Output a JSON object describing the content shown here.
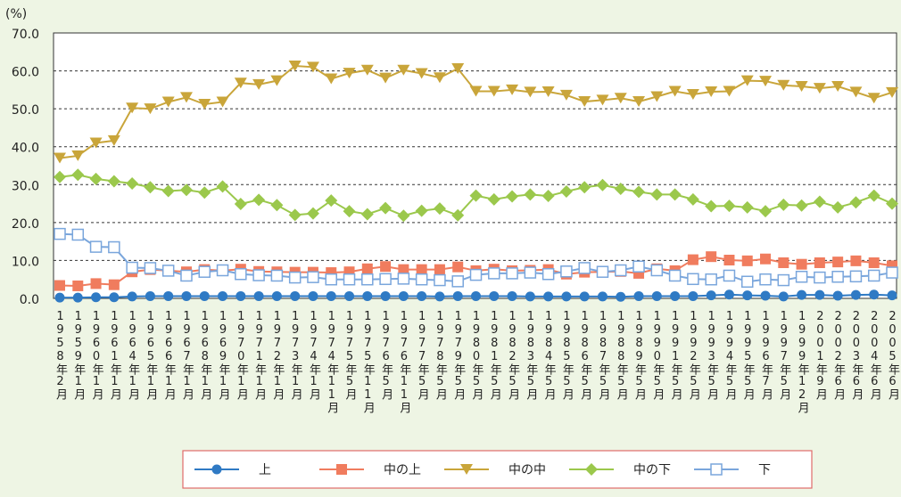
{
  "chart_data": {
    "type": "line",
    "y_label": "(%)",
    "categories": [
      "1958年2月",
      "1959年1月",
      "1960年1月",
      "1961年1月",
      "1964年1月",
      "1965年1月",
      "1966年1月",
      "1967年1月",
      "1968年1月",
      "1969年1月",
      "1970年1月",
      "1971年1月",
      "1972年1月",
      "1973年1月",
      "1974年1月",
      "1974年11月",
      "1975年5月",
      "1975年11月",
      "1976年5月",
      "1976年11月",
      "1977年5月",
      "1978年5月",
      "1979年5月",
      "1980年5月",
      "1981年5月",
      "1982年5月",
      "1983年5月",
      "1984年5月",
      "1985年5月",
      "1986年5月",
      "1987年5月",
      "1988年5月",
      "1989年5月",
      "1990年5月",
      "1991年5月",
      "1992年5月",
      "1993年5月",
      "1994年5月",
      "1995年5月",
      "1996年7月",
      "1997年5月",
      "1999年12月",
      "2001年9月",
      "2002年6月",
      "2003年6月",
      "2004年6月",
      "2005年6月"
    ],
    "series": [
      {
        "name": "上",
        "color": "#2f7ac4",
        "marker": "circle",
        "values": [
          0.2,
          0.2,
          0.3,
          0.3,
          0.5,
          0.6,
          0.6,
          0.6,
          0.6,
          0.6,
          0.6,
          0.6,
          0.6,
          0.6,
          0.6,
          0.6,
          0.6,
          0.6,
          0.6,
          0.6,
          0.6,
          0.5,
          0.6,
          0.6,
          0.6,
          0.6,
          0.5,
          0.5,
          0.5,
          0.5,
          0.5,
          0.4,
          0.6,
          0.6,
          0.6,
          0.6,
          0.8,
          1.0,
          0.8,
          0.7,
          0.5,
          0.9,
          0.9,
          0.7,
          0.9,
          1.0,
          0.8
        ]
      },
      {
        "name": "中の上",
        "color": "#f07c5e",
        "marker": "square",
        "values": [
          3.4,
          3.3,
          3.9,
          3.6,
          7.0,
          7.6,
          7.3,
          7.0,
          7.6,
          7.3,
          7.7,
          7.1,
          7.0,
          6.9,
          6.9,
          6.8,
          7.0,
          7.8,
          8.4,
          7.6,
          7.6,
          7.6,
          8.3,
          7.3,
          7.7,
          7.3,
          7.4,
          7.6,
          6.4,
          6.9,
          7.0,
          7.1,
          6.6,
          7.8,
          7.3,
          10.2,
          11.0,
          10.1,
          9.9,
          10.4,
          9.4,
          9.0,
          9.4,
          9.6,
          9.9,
          9.4,
          8.6
        ]
      },
      {
        "name": "中の中",
        "color": "#c9a53a",
        "marker": "triangle",
        "values": [
          37.0,
          37.6,
          41.0,
          41.6,
          50.2,
          50.0,
          51.8,
          53.0,
          51.2,
          51.8,
          56.8,
          56.4,
          57.4,
          61.3,
          61.0,
          57.9,
          59.4,
          60.2,
          58.1,
          60.2,
          59.3,
          58.2,
          60.6,
          54.6,
          54.6,
          55.0,
          54.4,
          54.5,
          53.6,
          51.9,
          52.3,
          52.8,
          51.9,
          53.2,
          54.6,
          53.8,
          54.5,
          54.6,
          57.4,
          57.3,
          56.2,
          55.9,
          55.4,
          55.9,
          54.4,
          52.8,
          54.3
        ]
      },
      {
        "name": "中の下",
        "color": "#9bc84c",
        "marker": "diamond",
        "values": [
          32.0,
          32.6,
          31.5,
          30.9,
          30.3,
          29.3,
          28.3,
          28.6,
          27.9,
          29.5,
          24.9,
          26.0,
          24.6,
          22.0,
          22.4,
          25.8,
          23.0,
          22.2,
          23.8,
          21.8,
          23.1,
          23.7,
          21.9,
          27.1,
          26.1,
          26.9,
          27.4,
          27.0,
          28.2,
          29.3,
          29.9,
          28.9,
          28.1,
          27.4,
          27.4,
          26.1,
          24.3,
          24.4,
          24.0,
          23.0,
          24.7,
          24.5,
          25.5,
          24.0,
          25.3,
          27.1,
          25.0
        ]
      },
      {
        "name": "下",
        "color": "#7aa6dc",
        "marker": "open-square",
        "values": [
          17.0,
          16.8,
          13.6,
          13.5,
          8.1,
          8.0,
          7.3,
          6.0,
          7.0,
          7.4,
          6.4,
          6.1,
          6.0,
          5.5,
          5.6,
          5.0,
          5.0,
          5.0,
          5.1,
          5.2,
          5.0,
          4.8,
          4.5,
          6.2,
          6.6,
          6.6,
          6.8,
          6.4,
          7.1,
          8.0,
          7.0,
          7.4,
          8.4,
          7.4,
          6.0,
          5.1,
          5.0,
          6.0,
          4.4,
          5.0,
          4.8,
          5.7,
          5.5,
          5.7,
          5.8,
          6.0,
          6.8
        ]
      }
    ],
    "ylim": [
      0,
      70
    ],
    "yticks": [
      {
        "value": 0,
        "label": "0.0"
      },
      {
        "value": 10,
        "label": "10.0"
      },
      {
        "value": 20,
        "label": "20.0"
      },
      {
        "value": 30,
        "label": "30.0"
      },
      {
        "value": 40,
        "label": "40.0"
      },
      {
        "value": 50,
        "label": "50.0"
      },
      {
        "value": 60,
        "label": "60.0"
      },
      {
        "value": 70,
        "label": "70.0"
      }
    ],
    "grid": true,
    "legend": "bottom"
  }
}
